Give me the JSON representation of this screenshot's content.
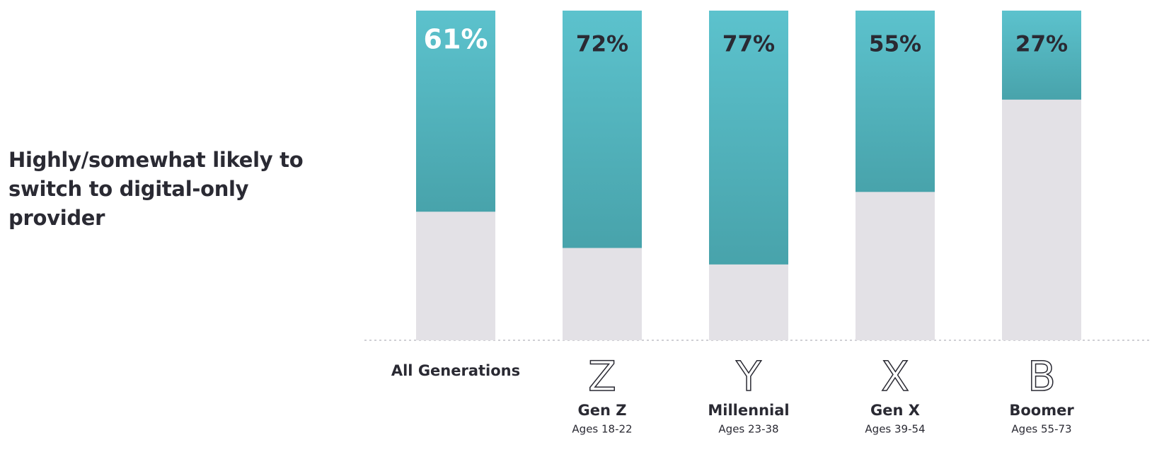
{
  "chart_data": {
    "type": "bar",
    "y_label": "Highly/somewhat likely to switch to digital-only provider",
    "categories": [
      "All Generations",
      "Gen Z",
      "Millennial",
      "Gen X",
      "Boomer"
    ],
    "category_icons": [
      null,
      "Z",
      "Y",
      "X",
      "B"
    ],
    "category_notes": [
      null,
      "Ages 18-22",
      "Ages 23-38",
      "Ages 39-54",
      "Ages 55-73"
    ],
    "values": [
      61,
      72,
      77,
      55,
      27
    ],
    "value_labels": [
      "61%",
      "72%",
      "77%",
      "55%",
      "27%"
    ],
    "value_label_colors": [
      "#ffffff",
      "#2a2a33",
      "#2a2a33",
      "#2a2a33",
      "#2a2a33"
    ],
    "color": "#55b6c1",
    "track_color": "#e3e1e6",
    "ylim": [
      0,
      100
    ]
  }
}
